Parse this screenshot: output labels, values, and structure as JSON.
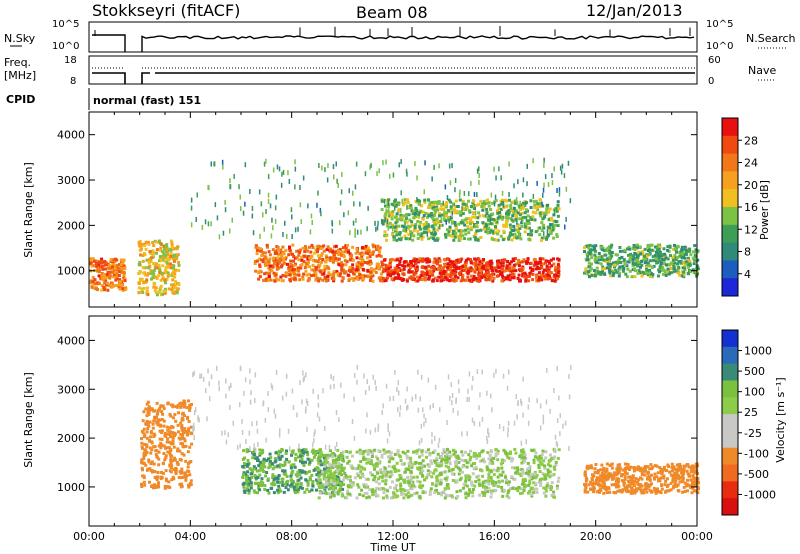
{
  "header": {
    "station": "Stokkseyri (fitACF)",
    "beam": "Beam 08",
    "date": "12/Jan/2013"
  },
  "strips": {
    "nsky_label": "N.Sky",
    "nsky_ticks": [
      "10^5",
      "10^0"
    ],
    "nsearch_label": "N.Search",
    "nsearch_ticks": [
      "10^5",
      "10^0"
    ],
    "freq_label": "Freq.",
    "freq_unit": "[MHz]",
    "freq_ticks": [
      "18",
      "8"
    ],
    "nave_label": "Nave",
    "nave_ticks": [
      "60",
      "0"
    ],
    "cpid_label": "CPID",
    "cpid_value": "normal (fast) 151"
  },
  "colors": {
    "power": [
      "#1c28d8",
      "#1c5ec0",
      "#2f8a7a",
      "#3f9e56",
      "#7cc244",
      "#f0c020",
      "#f7a020",
      "#f07818",
      "#f04a10",
      "#e81010"
    ],
    "velocity": [
      "#1530d0",
      "#2a6ab8",
      "#3a8a78",
      "#7cc040",
      "#8ccc48",
      "#c8c8c4",
      "#c8c8c4",
      "#f08a28",
      "#f06a20",
      "#e82c10",
      "#d81010"
    ]
  },
  "chart_data": [
    {
      "type": "heatmap",
      "panel": "power",
      "xlabel": "",
      "ylabel": "Slant Range [km]",
      "xlim": [
        0,
        24
      ],
      "ylim": [
        200,
        4500
      ],
      "xticks": [
        "00:00",
        "04:00",
        "08:00",
        "12:00",
        "16:00",
        "20:00",
        "00:00"
      ],
      "yticks": [
        1000,
        2000,
        3000,
        4000
      ],
      "colorbar": {
        "label": "Power [dB]",
        "ticks": [
          "28",
          "24",
          "20",
          "16",
          "12",
          "8",
          "4"
        ]
      },
      "data_gaps_ut_hours": [
        [
          1.4,
          1.9
        ],
        [
          18.6,
          19.1
        ]
      ],
      "scatter_regions": [
        {
          "t": [
            0.0,
            1.4
          ],
          "range_km": [
            600,
            1300
          ],
          "level_db": 24
        },
        {
          "t": [
            1.9,
            3.5
          ],
          "range_km": [
            500,
            1700
          ],
          "level_db": 18
        },
        {
          "t": [
            6.5,
            11.5
          ],
          "range_km": [
            800,
            1600
          ],
          "level_db": 24
        },
        {
          "t": [
            11.5,
            18.5
          ],
          "range_km": [
            800,
            1300
          ],
          "level_db": 28
        },
        {
          "t": [
            11.5,
            18.5
          ],
          "range_km": [
            1700,
            2600
          ],
          "level_db": 14
        },
        {
          "t": [
            19.5,
            24.0
          ],
          "range_km": [
            900,
            1600
          ],
          "level_db": 12
        }
      ]
    },
    {
      "type": "heatmap",
      "panel": "velocity",
      "xlabel": "Time UT",
      "ylabel": "Slant Range [km]",
      "xlim": [
        0,
        24
      ],
      "ylim": [
        200,
        4500
      ],
      "xticks": [
        "00:00",
        "04:00",
        "08:00",
        "12:00",
        "16:00",
        "20:00",
        "00:00"
      ],
      "yticks": [
        1000,
        2000,
        3000,
        4000
      ],
      "colorbar": {
        "label": "Velocity [m s⁻¹]",
        "ticks": [
          "1000",
          "500",
          "100",
          "25",
          "-25",
          "-100",
          "-500",
          "-1000"
        ]
      },
      "data_gaps_ut_hours": [
        [
          1.4,
          1.9
        ],
        [
          18.6,
          19.1
        ]
      ],
      "scatter_regions": [
        {
          "t": [
            2.0,
            4.0
          ],
          "range_km": [
            1000,
            2800
          ],
          "level_mps": -300
        },
        {
          "t": [
            6.0,
            10.0
          ],
          "range_km": [
            900,
            1800
          ],
          "level_mps": 60
        },
        {
          "t": [
            9.0,
            18.5
          ],
          "range_km": [
            800,
            1800
          ],
          "level_mps": 0
        },
        {
          "t": [
            19.5,
            24.0
          ],
          "range_km": [
            900,
            1500
          ],
          "level_mps": -300
        }
      ]
    }
  ]
}
